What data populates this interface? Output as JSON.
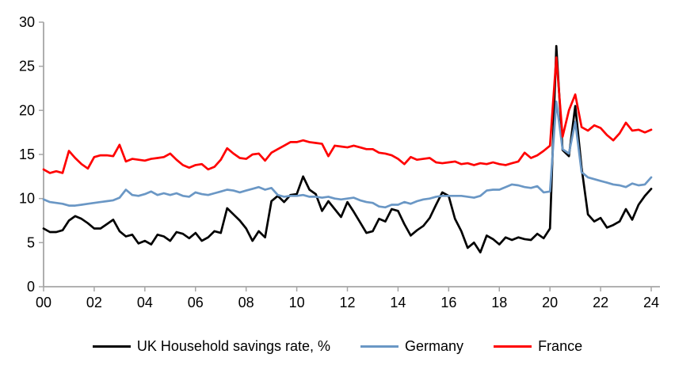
{
  "chart_data": {
    "type": "line",
    "title": "",
    "xlabel": "",
    "ylabel": "",
    "x_start_year": 2000,
    "x_step_years": 0.25,
    "x_axis_range_years": [
      0,
      24
    ],
    "ylim": [
      0,
      30
    ],
    "y_ticks": [
      0,
      5,
      10,
      15,
      20,
      25,
      30
    ],
    "x_tick_years": [
      0,
      2,
      4,
      6,
      8,
      10,
      12,
      14,
      16,
      18,
      20,
      22,
      24
    ],
    "x_tick_labels": [
      "00",
      "02",
      "04",
      "06",
      "08",
      "10",
      "12",
      "14",
      "16",
      "18",
      "20",
      "22",
      "24"
    ],
    "grid": false,
    "legend_position": "bottom",
    "axis_color": "#A6A6A6",
    "label_color": "#000000",
    "series": [
      {
        "name": "UK Household savings rate, %",
        "color": "#000000",
        "stroke_width": 2.7,
        "values": [
          6.6,
          6.2,
          6.2,
          6.4,
          7.5,
          8.0,
          7.7,
          7.2,
          6.6,
          6.6,
          7.1,
          7.6,
          6.3,
          5.7,
          5.9,
          4.9,
          5.2,
          4.8,
          5.9,
          5.7,
          5.2,
          6.2,
          6.0,
          5.5,
          6.1,
          5.2,
          5.6,
          6.3,
          6.1,
          8.9,
          8.2,
          7.5,
          6.6,
          5.2,
          6.3,
          5.6,
          9.7,
          10.3,
          9.6,
          10.4,
          10.5,
          12.5,
          11.0,
          10.5,
          8.6,
          9.7,
          8.8,
          7.9,
          9.6,
          8.5,
          7.3,
          6.1,
          6.3,
          7.7,
          7.4,
          8.8,
          8.6,
          7.1,
          5.8,
          6.4,
          6.9,
          7.8,
          9.3,
          10.7,
          10.3,
          7.7,
          6.3,
          4.4,
          5.0,
          3.9,
          5.8,
          5.4,
          4.8,
          5.6,
          5.3,
          5.6,
          5.4,
          5.3,
          6.0,
          5.5,
          6.6,
          27.3,
          15.5,
          14.8,
          20.5,
          13.5,
          8.2,
          7.4,
          7.8,
          6.7,
          7.0,
          7.4,
          8.8,
          7.6,
          9.3,
          10.3,
          11.1
        ]
      },
      {
        "name": "Germany",
        "color": "#6A97C5",
        "stroke_width": 2.7,
        "values": [
          9.9,
          9.6,
          9.5,
          9.4,
          9.2,
          9.2,
          9.3,
          9.4,
          9.5,
          9.6,
          9.7,
          9.8,
          10.1,
          11.0,
          10.4,
          10.3,
          10.5,
          10.8,
          10.4,
          10.6,
          10.4,
          10.6,
          10.3,
          10.2,
          10.7,
          10.5,
          10.4,
          10.6,
          10.8,
          11.0,
          10.9,
          10.7,
          10.9,
          11.1,
          11.3,
          11.0,
          11.2,
          10.4,
          10.2,
          10.3,
          10.3,
          10.4,
          10.2,
          10.2,
          10.1,
          10.2,
          10.0,
          9.9,
          10.0,
          10.1,
          9.8,
          9.6,
          9.5,
          9.1,
          9.0,
          9.3,
          9.3,
          9.6,
          9.4,
          9.7,
          9.9,
          10.0,
          10.2,
          10.3,
          10.3,
          10.3,
          10.3,
          10.2,
          10.1,
          10.3,
          10.9,
          11.0,
          11.0,
          11.3,
          11.6,
          11.5,
          11.3,
          11.2,
          11.4,
          10.7,
          10.8,
          21.0,
          15.6,
          15.1,
          18.7,
          13.0,
          12.4,
          12.2,
          12.0,
          11.8,
          11.6,
          11.5,
          11.3,
          11.7,
          11.5,
          11.6,
          12.4
        ]
      },
      {
        "name": "France",
        "color": "#FF0000",
        "stroke_width": 2.7,
        "values": [
          13.3,
          12.9,
          13.1,
          12.9,
          15.4,
          14.6,
          13.9,
          13.4,
          14.7,
          14.9,
          14.9,
          14.8,
          16.1,
          14.2,
          14.5,
          14.4,
          14.3,
          14.5,
          14.6,
          14.7,
          15.1,
          14.4,
          13.8,
          13.5,
          13.8,
          13.9,
          13.3,
          13.6,
          14.4,
          15.7,
          15.1,
          14.6,
          14.5,
          15.0,
          15.1,
          14.3,
          15.2,
          15.6,
          16.0,
          16.4,
          16.4,
          16.6,
          16.4,
          16.3,
          16.2,
          14.8,
          16.0,
          15.9,
          15.8,
          16.0,
          15.8,
          15.6,
          15.6,
          15.2,
          15.1,
          14.9,
          14.5,
          13.9,
          14.7,
          14.4,
          14.5,
          14.6,
          14.1,
          14.0,
          14.1,
          14.2,
          13.9,
          14.0,
          13.8,
          14.0,
          13.9,
          14.1,
          13.9,
          13.8,
          14.0,
          14.2,
          15.2,
          14.6,
          14.9,
          15.4,
          16.0,
          26.0,
          17.0,
          20.0,
          21.8,
          18.1,
          17.7,
          18.3,
          18.0,
          17.2,
          16.6,
          17.4,
          18.6,
          17.7,
          17.8,
          17.5,
          17.8
        ]
      }
    ]
  }
}
